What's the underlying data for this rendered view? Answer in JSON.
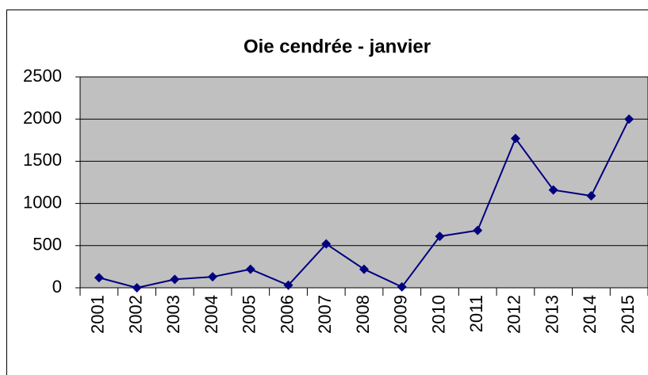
{
  "chart_data": {
    "type": "line",
    "title": "Oie cendrée - janvier",
    "categories": [
      "2001",
      "2002",
      "2003",
      "2004",
      "2005",
      "2006",
      "2007",
      "2008",
      "2009",
      "2010",
      "2011",
      "2012",
      "2013",
      "2014",
      "2015"
    ],
    "values": [
      120,
      0,
      100,
      130,
      220,
      30,
      520,
      220,
      10,
      610,
      680,
      1770,
      1160,
      1090,
      2000
    ],
    "color": "#000080",
    "plot_background": "#c0c0c0",
    "ylim": [
      0,
      2500
    ],
    "yticks": [
      0,
      500,
      1000,
      1500,
      2000,
      2500
    ],
    "grid": true
  }
}
